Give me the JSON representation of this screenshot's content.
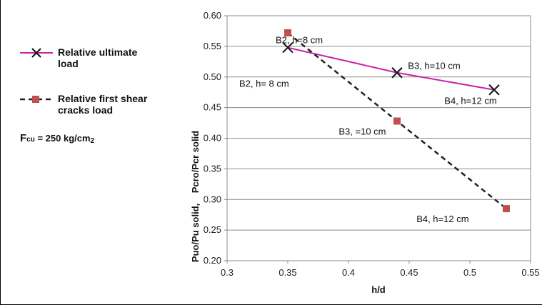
{
  "chart_data": {
    "type": "line",
    "xlabel": "h/d",
    "ylabel": "Puo/Pu solid,    Pcro/Pcr solid",
    "xlim": [
      0.3,
      0.55
    ],
    "ylim": [
      0.2,
      0.6
    ],
    "x_ticks": [
      "0.3",
      "0.35",
      "0.4",
      "0.45",
      "0.5",
      "0.55"
    ],
    "y_ticks": [
      "0.20",
      "0.25",
      "0.30",
      "0.35",
      "0.40",
      "0.45",
      "0.50",
      "0.55",
      "0.60"
    ],
    "grid": "horizontal",
    "legend_placement": "left",
    "series": [
      {
        "name": "Relative ultimate load",
        "color": "#cc22aa",
        "line": "solid",
        "marker": "x",
        "points": [
          {
            "x": 0.35,
            "y": 0.548
          },
          {
            "x": 0.44,
            "y": 0.507
          },
          {
            "x": 0.52,
            "y": 0.479
          }
        ]
      },
      {
        "name": "Relative first shear cracks load",
        "color": "#222222",
        "marker_color": "#c0504d",
        "line": "dashed",
        "marker": "square",
        "points": [
          {
            "x": 0.35,
            "y": 0.572
          },
          {
            "x": 0.44,
            "y": 0.428
          },
          {
            "x": 0.53,
            "y": 0.285
          }
        ]
      }
    ],
    "annotations": [
      {
        "text": "B2, h=8 cm",
        "x": 0.34,
        "y": 0.555
      },
      {
        "text": "B3, h=10 cm",
        "x": 0.449,
        "y": 0.513
      },
      {
        "text": "B4, h=12 cm",
        "x": 0.479,
        "y": 0.456
      },
      {
        "text": "B2, h= 8 cm",
        "x": 0.31,
        "y": 0.484
      },
      {
        "text": "B3, =10 cm",
        "x": 0.392,
        "y": 0.406
      },
      {
        "text": "B4, h=12 cm",
        "x": 0.456,
        "y": 0.263
      }
    ],
    "legend_entries": [
      "Relative ultimate load",
      "Relative first shear cracks load"
    ]
  },
  "legend": {
    "item1_line1": "Relative ultimate",
    "item1_line2": "load",
    "item2_line1": "Relative first shear",
    "item2_line2": "cracks load"
  },
  "note": {
    "prefix": "F",
    "sub": "cu",
    "text": " = 250 kg/cm",
    "sub2": "2"
  }
}
